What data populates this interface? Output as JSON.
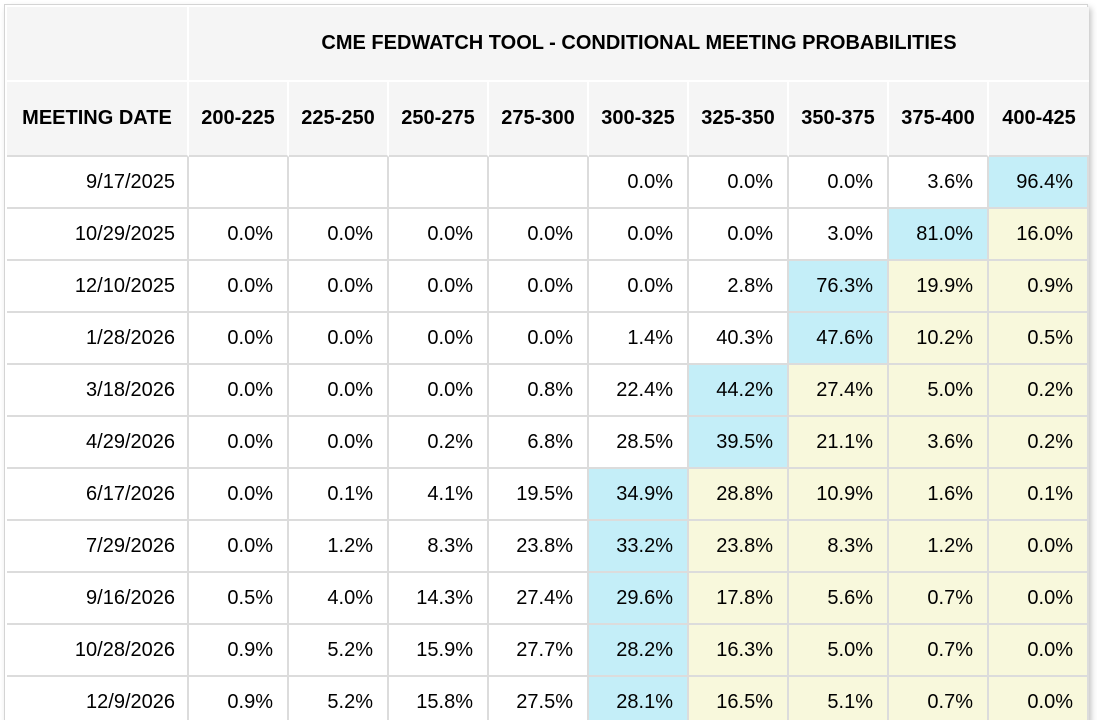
{
  "title": "CME FEDWATCH TOOL - CONDITIONAL MEETING PROBABILITIES",
  "columns": [
    "MEETING DATE",
    "200-225",
    "225-250",
    "250-275",
    "275-300",
    "300-325",
    "325-350",
    "350-375",
    "375-400",
    "400-425"
  ],
  "colors": {
    "cyan_highlight": "#c4eef8",
    "yellow_highlight": "#f8f8dc",
    "header_bg": "#f5f5f5",
    "grid": "#dcdcdc"
  },
  "rows": [
    {
      "date": "9/17/2025",
      "cells": [
        {
          "v": ""
        },
        {
          "v": ""
        },
        {
          "v": ""
        },
        {
          "v": ""
        },
        {
          "v": "0.0%"
        },
        {
          "v": "0.0%"
        },
        {
          "v": "0.0%"
        },
        {
          "v": "3.6%"
        },
        {
          "v": "96.4%",
          "h": "cyan_highlight"
        }
      ]
    },
    {
      "date": "10/29/2025",
      "cells": [
        {
          "v": "0.0%"
        },
        {
          "v": "0.0%"
        },
        {
          "v": "0.0%"
        },
        {
          "v": "0.0%"
        },
        {
          "v": "0.0%"
        },
        {
          "v": "0.0%"
        },
        {
          "v": "3.0%"
        },
        {
          "v": "81.0%",
          "h": "cyan_highlight"
        },
        {
          "v": "16.0%",
          "h": "yellow_highlight"
        }
      ]
    },
    {
      "date": "12/10/2025",
      "cells": [
        {
          "v": "0.0%"
        },
        {
          "v": "0.0%"
        },
        {
          "v": "0.0%"
        },
        {
          "v": "0.0%"
        },
        {
          "v": "0.0%"
        },
        {
          "v": "2.8%"
        },
        {
          "v": "76.3%",
          "h": "cyan_highlight"
        },
        {
          "v": "19.9%",
          "h": "yellow_highlight"
        },
        {
          "v": "0.9%",
          "h": "yellow_highlight"
        }
      ]
    },
    {
      "date": "1/28/2026",
      "cells": [
        {
          "v": "0.0%"
        },
        {
          "v": "0.0%"
        },
        {
          "v": "0.0%"
        },
        {
          "v": "0.0%"
        },
        {
          "v": "1.4%"
        },
        {
          "v": "40.3%"
        },
        {
          "v": "47.6%",
          "h": "cyan_highlight"
        },
        {
          "v": "10.2%",
          "h": "yellow_highlight"
        },
        {
          "v": "0.5%",
          "h": "yellow_highlight"
        }
      ]
    },
    {
      "date": "3/18/2026",
      "cells": [
        {
          "v": "0.0%"
        },
        {
          "v": "0.0%"
        },
        {
          "v": "0.0%"
        },
        {
          "v": "0.8%"
        },
        {
          "v": "22.4%"
        },
        {
          "v": "44.2%",
          "h": "cyan_highlight"
        },
        {
          "v": "27.4%",
          "h": "yellow_highlight"
        },
        {
          "v": "5.0%",
          "h": "yellow_highlight"
        },
        {
          "v": "0.2%",
          "h": "yellow_highlight"
        }
      ]
    },
    {
      "date": "4/29/2026",
      "cells": [
        {
          "v": "0.0%"
        },
        {
          "v": "0.0%"
        },
        {
          "v": "0.2%"
        },
        {
          "v": "6.8%"
        },
        {
          "v": "28.5%"
        },
        {
          "v": "39.5%",
          "h": "cyan_highlight"
        },
        {
          "v": "21.1%",
          "h": "yellow_highlight"
        },
        {
          "v": "3.6%",
          "h": "yellow_highlight"
        },
        {
          "v": "0.2%",
          "h": "yellow_highlight"
        }
      ]
    },
    {
      "date": "6/17/2026",
      "cells": [
        {
          "v": "0.0%"
        },
        {
          "v": "0.1%"
        },
        {
          "v": "4.1%"
        },
        {
          "v": "19.5%"
        },
        {
          "v": "34.9%",
          "h": "cyan_highlight"
        },
        {
          "v": "28.8%",
          "h": "yellow_highlight"
        },
        {
          "v": "10.9%",
          "h": "yellow_highlight"
        },
        {
          "v": "1.6%",
          "h": "yellow_highlight"
        },
        {
          "v": "0.1%",
          "h": "yellow_highlight"
        }
      ]
    },
    {
      "date": "7/29/2026",
      "cells": [
        {
          "v": "0.0%"
        },
        {
          "v": "1.2%"
        },
        {
          "v": "8.3%"
        },
        {
          "v": "23.8%"
        },
        {
          "v": "33.2%",
          "h": "cyan_highlight"
        },
        {
          "v": "23.8%",
          "h": "yellow_highlight"
        },
        {
          "v": "8.3%",
          "h": "yellow_highlight"
        },
        {
          "v": "1.2%",
          "h": "yellow_highlight"
        },
        {
          "v": "0.0%",
          "h": "yellow_highlight"
        }
      ]
    },
    {
      "date": "9/16/2026",
      "cells": [
        {
          "v": "0.5%"
        },
        {
          "v": "4.0%"
        },
        {
          "v": "14.3%"
        },
        {
          "v": "27.4%"
        },
        {
          "v": "29.6%",
          "h": "cyan_highlight"
        },
        {
          "v": "17.8%",
          "h": "yellow_highlight"
        },
        {
          "v": "5.6%",
          "h": "yellow_highlight"
        },
        {
          "v": "0.7%",
          "h": "yellow_highlight"
        },
        {
          "v": "0.0%",
          "h": "yellow_highlight"
        }
      ]
    },
    {
      "date": "10/28/2026",
      "cells": [
        {
          "v": "0.9%"
        },
        {
          "v": "5.2%"
        },
        {
          "v": "15.9%"
        },
        {
          "v": "27.7%"
        },
        {
          "v": "28.2%",
          "h": "cyan_highlight"
        },
        {
          "v": "16.3%",
          "h": "yellow_highlight"
        },
        {
          "v": "5.0%",
          "h": "yellow_highlight"
        },
        {
          "v": "0.7%",
          "h": "yellow_highlight"
        },
        {
          "v": "0.0%",
          "h": "yellow_highlight"
        }
      ]
    },
    {
      "date": "12/9/2026",
      "cells": [
        {
          "v": "0.9%"
        },
        {
          "v": "5.2%"
        },
        {
          "v": "15.8%"
        },
        {
          "v": "27.5%"
        },
        {
          "v": "28.1%",
          "h": "cyan_highlight"
        },
        {
          "v": "16.5%",
          "h": "yellow_highlight"
        },
        {
          "v": "5.1%",
          "h": "yellow_highlight"
        },
        {
          "v": "0.7%",
          "h": "yellow_highlight"
        },
        {
          "v": "0.0%",
          "h": "yellow_highlight"
        }
      ]
    }
  ]
}
